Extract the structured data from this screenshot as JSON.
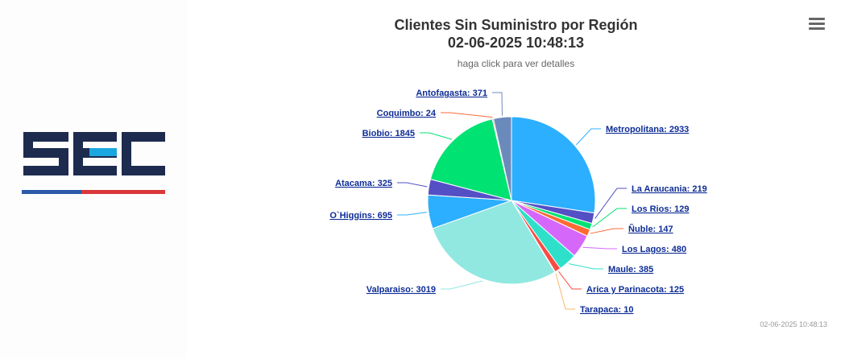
{
  "chart_data": {
    "type": "pie",
    "title": "Clientes Sin Suministro por Región",
    "title_line2": "02-06-2025 10:48:13",
    "subtitle": "haga click para ver detalles",
    "credits": "02-06-2025 10:48:13",
    "slices": [
      {
        "name": "Metropolitana",
        "value": 2933,
        "color": "#2caffe"
      },
      {
        "name": "La Araucania",
        "value": 219,
        "color": "#544fc5"
      },
      {
        "name": "Los Rios",
        "value": 129,
        "color": "#00e272"
      },
      {
        "name": "Ñuble",
        "value": 147,
        "color": "#fe6a35"
      },
      {
        "name": "Los Lagos",
        "value": 480,
        "color": "#d568fb"
      },
      {
        "name": "Maule",
        "value": 385,
        "color": "#2ee0ca"
      },
      {
        "name": "Arica y Parinacota",
        "value": 125,
        "color": "#fa4b42"
      },
      {
        "name": "Tarapaca",
        "value": 10,
        "color": "#feb56a"
      },
      {
        "name": "Valparaiso",
        "value": 3019,
        "color": "#91e8e1"
      },
      {
        "name": "O`Higgins",
        "value": 695,
        "color": "#2caffe"
      },
      {
        "name": "Atacama",
        "value": 325,
        "color": "#544fc5"
      },
      {
        "name": "Biobio",
        "value": 1845,
        "color": "#00e272"
      },
      {
        "name": "Coquimbo",
        "value": 24,
        "color": "#fe6a35"
      },
      {
        "name": "Antofagasta",
        "value": 371,
        "color": "#6b8abc"
      }
    ]
  },
  "logo": {
    "text": "SEC",
    "colors": {
      "primary": "#1d2b4f",
      "accent": "#1aa7e0",
      "stripe_blue": "#2a5aa8",
      "stripe_red": "#d9383a"
    }
  },
  "menu_icon": "hamburger-menu-icon"
}
